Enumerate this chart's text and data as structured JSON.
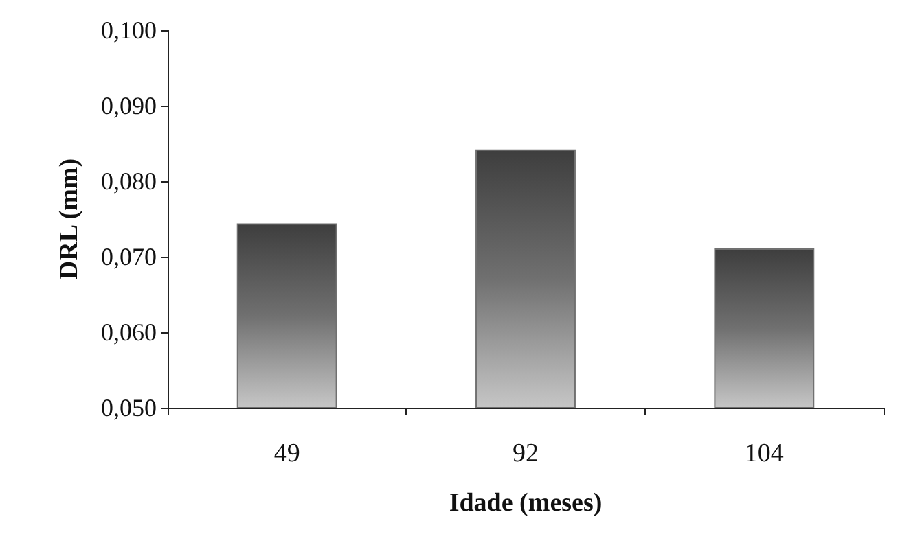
{
  "chart_data": {
    "type": "bar",
    "xlabel": "Idade (meses)",
    "ylabel": "DRL (mm)",
    "categories": [
      "49",
      "92",
      "104"
    ],
    "values": [
      0.0744,
      0.0842,
      0.0711
    ],
    "color": "#707070",
    "ylim": [
      0.05,
      0.1
    ],
    "yticks": [
      {
        "value": 0.05,
        "label": "0,050"
      },
      {
        "value": 0.06,
        "label": "0,060"
      },
      {
        "value": 0.07,
        "label": "0,070"
      },
      {
        "value": 0.08,
        "label": "0,080"
      },
      {
        "value": 0.09,
        "label": "0,090"
      },
      {
        "value": 0.1,
        "label": "0,100"
      }
    ],
    "grid": false
  }
}
